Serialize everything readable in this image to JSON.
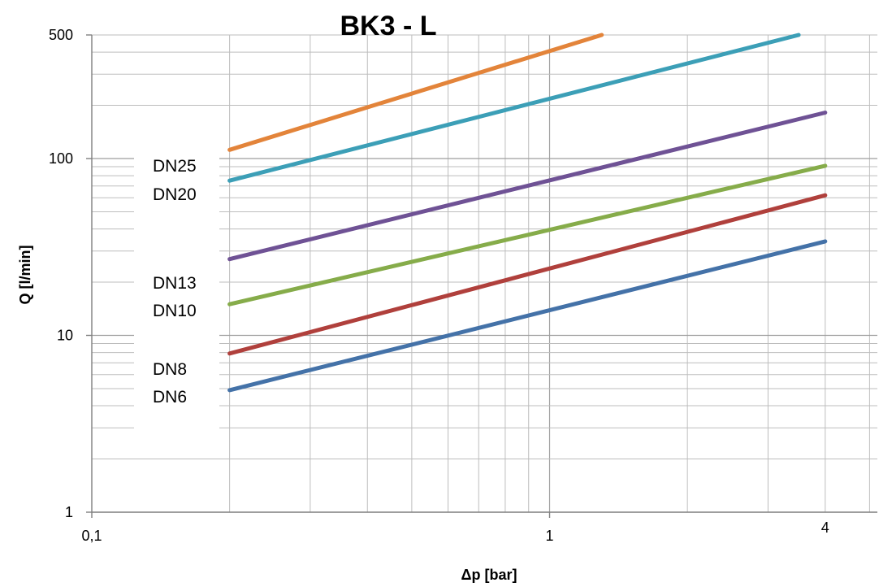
{
  "chart_data": {
    "type": "line",
    "title": "BK3 - L",
    "xlabel": "Δp [bar]",
    "ylabel": "Q [l/min]",
    "x_scale": "log",
    "y_scale": "log",
    "xlim": [
      0.1,
      5.2
    ],
    "ylim": [
      1,
      500
    ],
    "x_ticks": [
      "0,1",
      "1",
      "4"
    ],
    "y_ticks": [
      "1",
      "10",
      "100",
      "500"
    ],
    "grid": true,
    "series": [
      {
        "name": "DN6",
        "color": "#4472a8",
        "x": [
          0.2,
          4
        ],
        "y": [
          4.9,
          34
        ]
      },
      {
        "name": "DN8",
        "color": "#b0403c",
        "x": [
          0.2,
          4
        ],
        "y": [
          7.9,
          62
        ]
      },
      {
        "name": "DN10",
        "color": "#86ac4a",
        "x": [
          0.2,
          4
        ],
        "y": [
          15,
          91
        ]
      },
      {
        "name": "DN13",
        "color": "#6f5295",
        "x": [
          0.2,
          4
        ],
        "y": [
          27,
          182
        ]
      },
      {
        "name": "DN20",
        "color": "#3c9fb7",
        "x": [
          0.2,
          3.5
        ],
        "y": [
          75,
          500
        ]
      },
      {
        "name": "DN25",
        "color": "#e3843a",
        "x": [
          0.2,
          1.3
        ],
        "y": [
          112,
          500
        ]
      }
    ]
  }
}
